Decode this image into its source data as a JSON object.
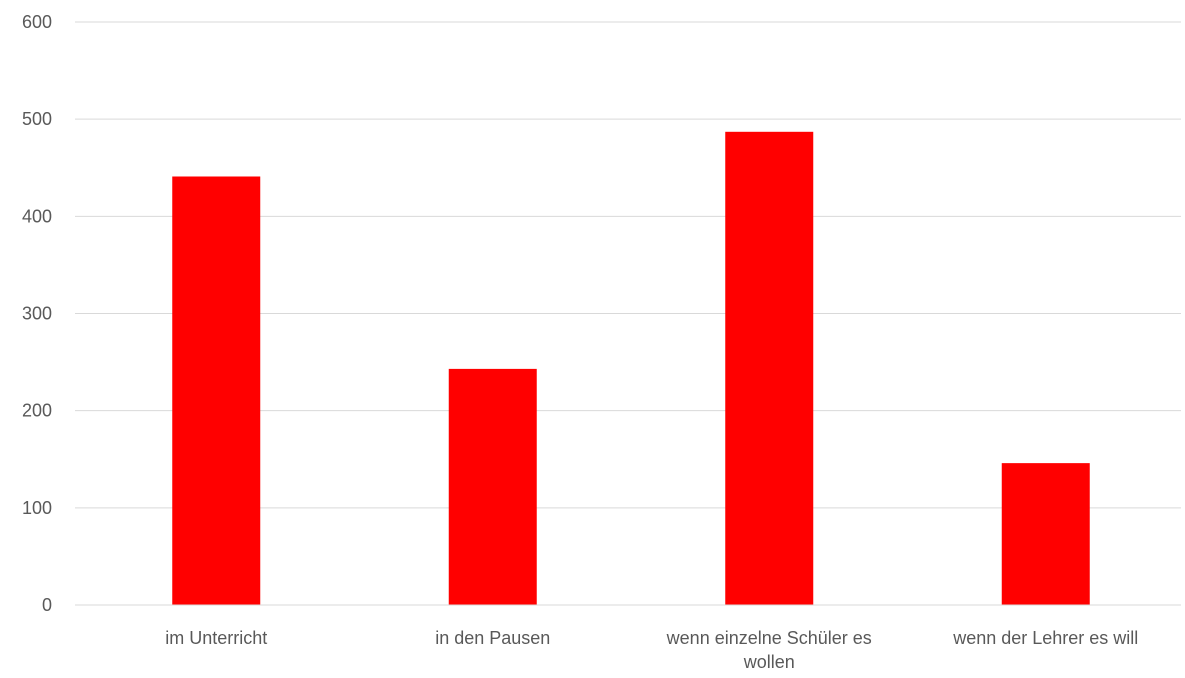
{
  "chart_data": {
    "type": "bar",
    "categories": [
      [
        "im Unterricht"
      ],
      [
        "in den Pausen"
      ],
      [
        "wenn einzelne Schüler es",
        "wollen"
      ],
      [
        "wenn der Lehrer es will"
      ]
    ],
    "values": [
      441,
      243,
      487,
      146
    ],
    "ylim": [
      0,
      600
    ],
    "yticks": [
      0,
      100,
      200,
      300,
      400,
      500,
      600
    ],
    "grid": true,
    "legend": "none",
    "bar_color": "#ff0000",
    "title": "",
    "xlabel": "",
    "ylabel": ""
  }
}
